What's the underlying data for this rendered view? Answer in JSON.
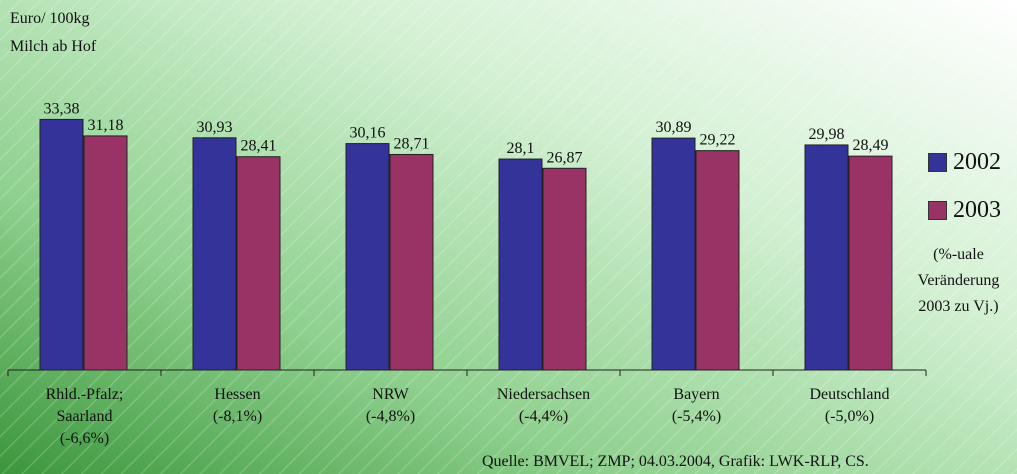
{
  "chart_data": {
    "type": "bar",
    "ylabel": [
      "Euro/ 100kg",
      "Milch ab Hof"
    ],
    "categories": [
      [
        "Rhld.-Pfalz;",
        "Saarland",
        "(-6,6%)"
      ],
      [
        "Hessen",
        "(-8,1%)"
      ],
      [
        "NRW",
        "(-4,8%)"
      ],
      [
        "Niedersachsen",
        "(-4,4%)"
      ],
      [
        "Bayern",
        "(-5,4%)"
      ],
      [
        "Deutschland",
        "(-5,0%)"
      ]
    ],
    "series": [
      {
        "name": "2002",
        "values": [
          33.38,
          30.93,
          30.16,
          28.1,
          30.89,
          29.98
        ],
        "labels": [
          "33,38",
          "30,93",
          "30,16",
          "28,1",
          "30,89",
          "29,98"
        ],
        "color": "#333399"
      },
      {
        "name": "2003",
        "values": [
          31.18,
          28.41,
          28.71,
          26.87,
          29.22,
          28.49
        ],
        "labels": [
          "31,18",
          "28,41",
          "28,71",
          "26,87",
          "29,22",
          "28,49"
        ],
        "color": "#993366"
      }
    ],
    "ylim": [
      0,
      34.5
    ],
    "grid": false,
    "legend_position": "right",
    "note": [
      "(%-uale",
      "Veränderung",
      "2003  zu Vj.)"
    ],
    "source": "Quelle: BMVEL; ZMP; 04.03.2004, Grafik: LWK-RLP, CS."
  },
  "colors": {
    "background_start": "#ffffff",
    "background_mid": "#c8ecc8",
    "background_end": "#3e9a3e",
    "series_2002": "#333399",
    "series_2003": "#993366"
  }
}
